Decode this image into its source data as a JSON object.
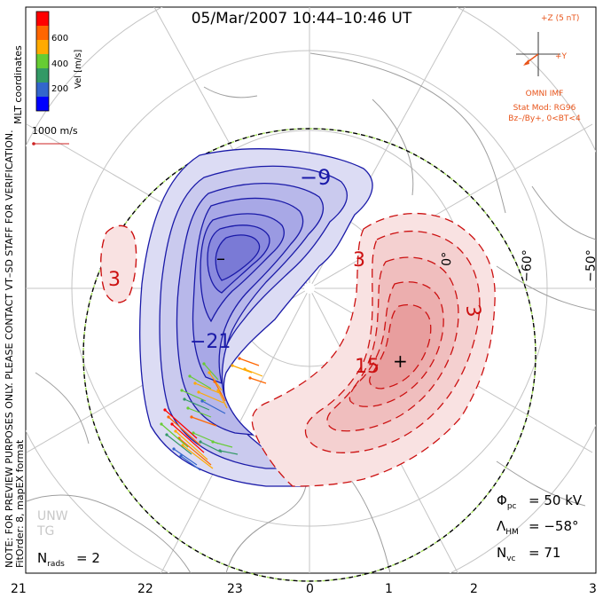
{
  "header": {
    "title": "05/Mar/2007 10:44–10:46 UT"
  },
  "colorbar": {
    "unit_label": "Vel [m/s]",
    "ticks": [
      "600",
      "400",
      "200"
    ],
    "colors": [
      "#ff0000",
      "#ff6600",
      "#ffaa00",
      "#66cc33",
      "#339966",
      "#3366cc",
      "#0000ff"
    ]
  },
  "side_notes": {
    "coordinates": "MLT coordinates",
    "verification": "NOTE: FOR PREVIEW PURPOSES ONLY. PLEASE CONTACT VT–SD STAFF FOR VERIFICATION.",
    "fitorder": "FitOrder: 8, mapEX format"
  },
  "scale": {
    "label": "1000 m/s"
  },
  "imf": {
    "z_label": "+Z (5 nT)",
    "y_label": "+Y",
    "source": "OMNI IMF",
    "stat_mod": "Stat Mod: RG96",
    "condition": "Bz–/By+, 0<BT<4"
  },
  "contours": {
    "neg_label": "−9",
    "neg_label_2": "−21",
    "pos_label": "3",
    "pos_label_2": "3",
    "pos_label_3": "15",
    "pos_label_4": "3",
    "min_marker": "–",
    "max_marker": "+"
  },
  "latitude_labels": [
    "0°",
    "−60°",
    "−50°"
  ],
  "stats": {
    "phi_pc_value": "= 50 kV",
    "lambda_hm_value": "= −58°",
    "n_vc_value": "= 71",
    "n_rads_value": "= 2"
  },
  "mlt_labels": [
    "21",
    "22",
    "23",
    "0",
    "1",
    "2",
    "3"
  ],
  "watermark": [
    "UNW",
    "TG"
  ],
  "colors": {
    "negative_contour": "#1a1aa8",
    "negative_fill": "#c8c8f0",
    "positive_contour": "#cc1111",
    "positive_fill": "#f6d2d2",
    "boundary_dash": "#a6e05a"
  }
}
